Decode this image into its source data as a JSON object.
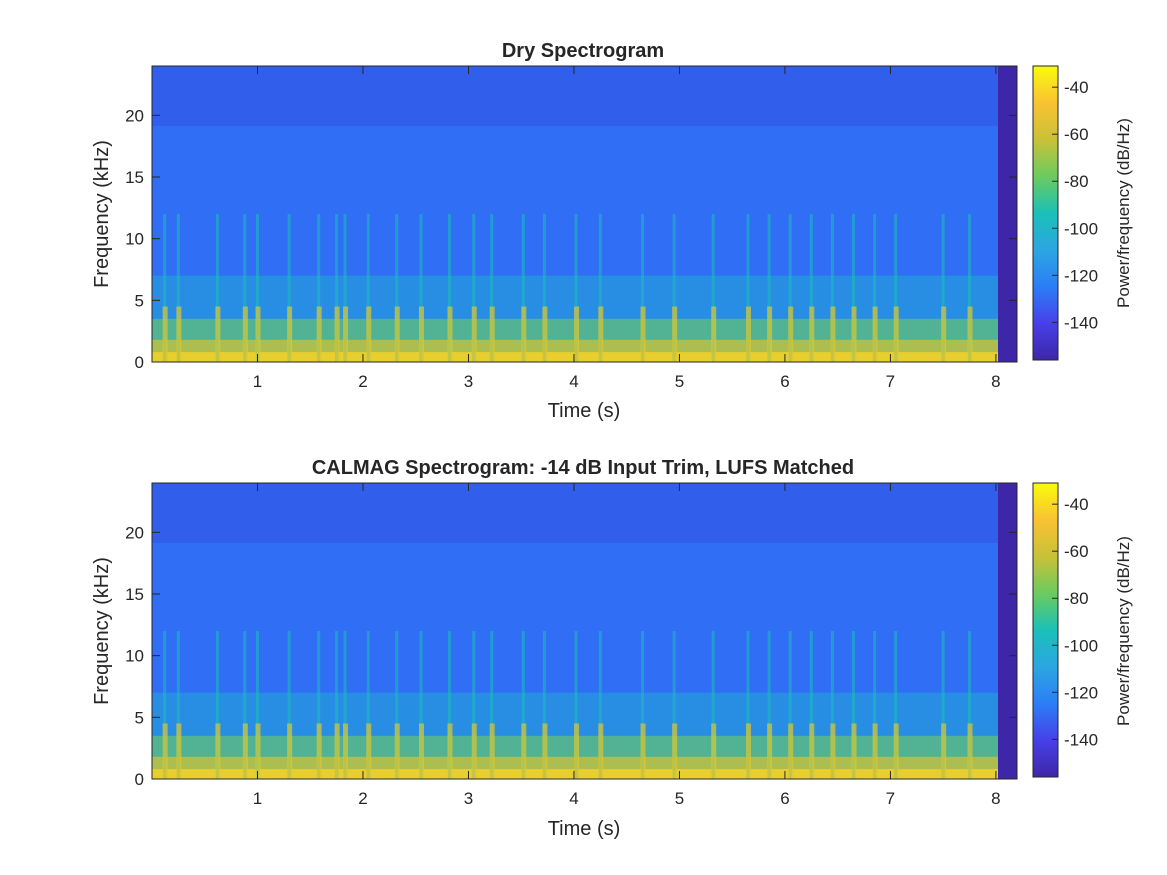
{
  "chart_data": [
    {
      "type": "heatmap",
      "title": "Dry Spectrogram",
      "xlabel": "Time (s)",
      "ylabel": "Frequency (kHz)",
      "xlim": [
        0,
        8.2
      ],
      "ylim": [
        0,
        24
      ],
      "xticks": [
        1,
        2,
        3,
        4,
        5,
        6,
        7,
        8
      ],
      "yticks": [
        0,
        5,
        10,
        15,
        20
      ],
      "colorbar": {
        "label": "Power/frequency (dB/Hz)",
        "range": [
          -156,
          -31
        ],
        "ticks": [
          -40,
          -60,
          -80,
          -100,
          -120,
          -140
        ]
      },
      "signal_end_s": 8.02,
      "onsets_s": [
        0.12,
        0.25,
        0.62,
        0.88,
        1.0,
        1.3,
        1.58,
        1.75,
        1.83,
        2.05,
        2.32,
        2.55,
        2.82,
        3.05,
        3.22,
        3.52,
        3.72,
        4.02,
        4.25,
        4.65,
        4.95,
        5.32,
        5.65,
        5.85,
        6.05,
        6.25,
        6.45,
        6.65,
        6.85,
        7.05,
        7.5,
        7.75
      ]
    },
    {
      "type": "heatmap",
      "title": "CALMAG Spectrogram: -14 dB Input Trim, LUFS Matched",
      "xlabel": "Time (s)",
      "ylabel": "Frequency (kHz)",
      "xlim": [
        0,
        8.2
      ],
      "ylim": [
        0,
        24
      ],
      "xticks": [
        1,
        2,
        3,
        4,
        5,
        6,
        7,
        8
      ],
      "yticks": [
        0,
        5,
        10,
        15,
        20
      ],
      "colorbar": {
        "label": "Power/frequency (dB/Hz)",
        "range": [
          -156,
          -31
        ],
        "ticks": [
          -40,
          -60,
          -80,
          -100,
          -120,
          -140
        ]
      },
      "signal_end_s": 8.02,
      "onsets_s": [
        0.12,
        0.25,
        0.62,
        0.88,
        1.0,
        1.3,
        1.58,
        1.75,
        1.83,
        2.05,
        2.32,
        2.55,
        2.82,
        3.05,
        3.22,
        3.52,
        3.72,
        4.02,
        4.25,
        4.65,
        4.95,
        5.32,
        5.65,
        5.85,
        6.05,
        6.25,
        6.45,
        6.65,
        6.85,
        7.05,
        7.5,
        7.75
      ]
    }
  ]
}
